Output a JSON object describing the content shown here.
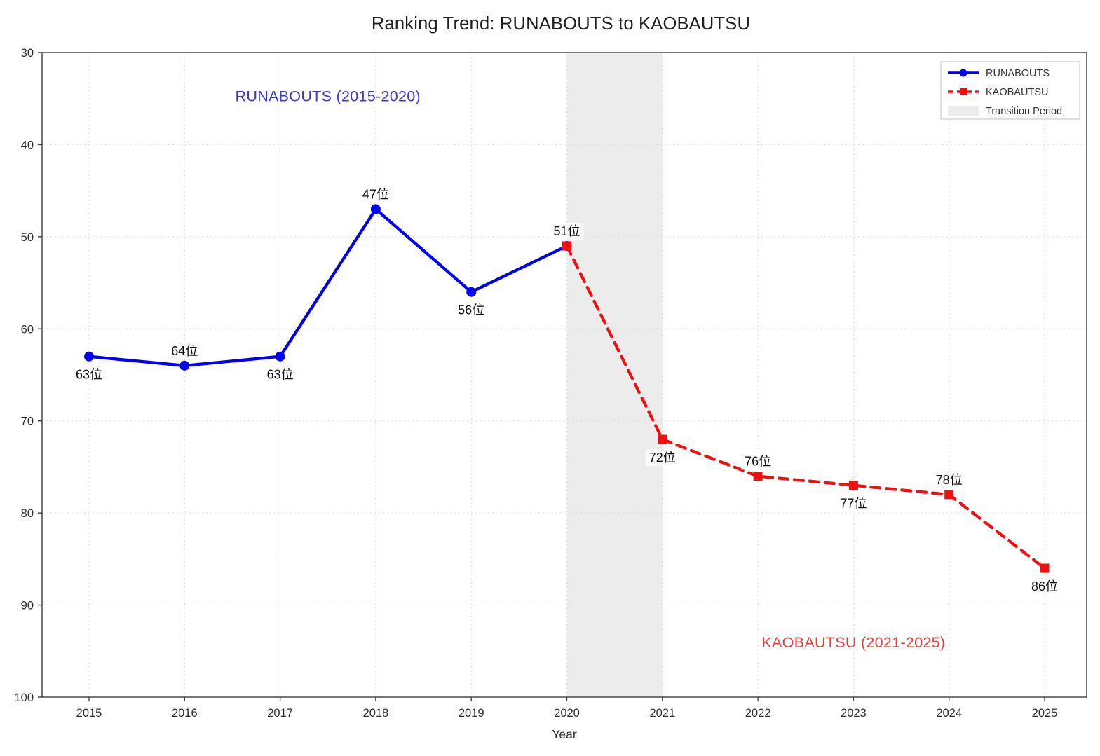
{
  "chart_data": {
    "type": "line",
    "title": "Ranking Trend: RUNABOUTS to KAOBAUTSU",
    "xlabel": "Year",
    "ylabel": "",
    "x_ticks": [
      2015,
      2016,
      2017,
      2018,
      2019,
      2020,
      2021,
      2022,
      2023,
      2024,
      2025
    ],
    "y_ticks": [
      30,
      40,
      50,
      60,
      70,
      80,
      90,
      100
    ],
    "ylim": [
      30,
      100
    ],
    "y_axis_inverted": true,
    "grid": true,
    "colors": {
      "runabouts_line": "#0000ee",
      "kaobautsu_line": "#ee1111",
      "transition_band": "#ececec",
      "annotation_blue": "#3a3ad9",
      "annotation_red": "#e3403b"
    },
    "series": [
      {
        "name": "RUNABOUTS",
        "color": "#0000ee",
        "line_style": "solid",
        "marker": "circle",
        "x": [
          2015,
          2016,
          2017,
          2018,
          2019,
          2020
        ],
        "values": [
          63,
          64,
          63,
          47,
          56,
          51
        ],
        "point_labels": [
          "63位",
          "64位",
          "63位",
          "47位",
          "56位",
          "51位"
        ],
        "label_side": [
          "below",
          "above",
          "below",
          "above",
          "below",
          "above"
        ]
      },
      {
        "name": "KAOBAUTSU",
        "color": "#ee1111",
        "line_style": "dashed",
        "marker": "square",
        "x": [
          2020,
          2021,
          2022,
          2023,
          2024,
          2025
        ],
        "values": [
          51,
          72,
          76,
          77,
          78,
          86
        ],
        "point_labels": [
          "",
          "72位",
          "76位",
          "77位",
          "78位",
          "86位"
        ],
        "label_side": [
          "",
          "below",
          "above",
          "below",
          "above",
          "below"
        ]
      }
    ],
    "transition_band": {
      "label": "Transition Period",
      "x_from": 2020,
      "x_to": 2021,
      "color": "#ececec"
    },
    "annotations": [
      {
        "text": "RUNABOUTS (2015-2020)",
        "color": "#3a3ad9",
        "x": 2017.5,
        "y": 35.3
      },
      {
        "text": "KAOBAUTSU (2021-2025)",
        "color": "#e3403b",
        "x": 2023.0,
        "y": 94.6
      }
    ],
    "legend": {
      "position": "top-right",
      "entries": [
        {
          "label": "RUNABOUTS",
          "swatch": "line-solid-circle",
          "color": "#0000ee"
        },
        {
          "label": "KAOBAUTSU",
          "swatch": "line-dashed-square",
          "color": "#ee1111"
        },
        {
          "label": "Transition Period",
          "swatch": "patch",
          "color": "#ececec"
        }
      ]
    }
  }
}
